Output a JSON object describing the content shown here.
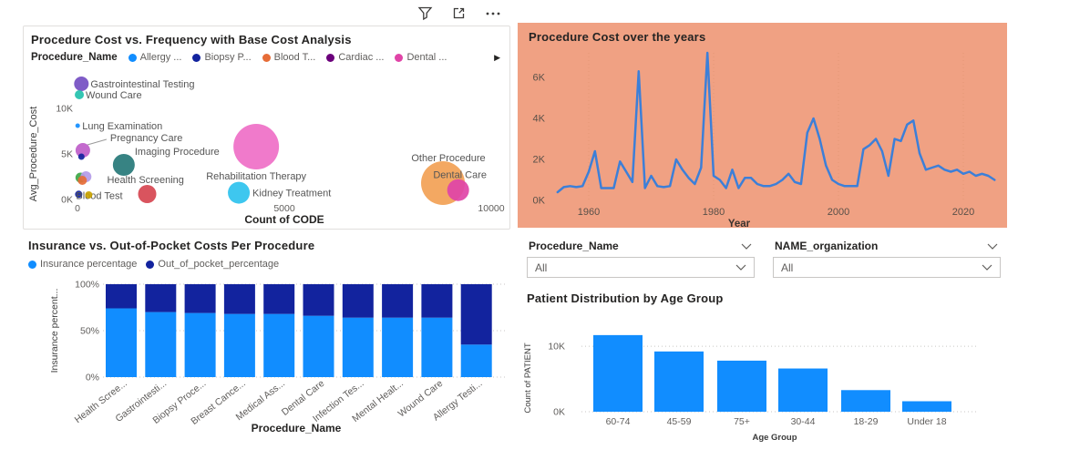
{
  "toolbar": {
    "icons": [
      {
        "name": "filter-icon"
      },
      {
        "name": "focus-mode-icon"
      },
      {
        "name": "more-options-icon"
      }
    ]
  },
  "scatter": {
    "title": "Procedure Cost vs. Frequency with Base Cost Analysis",
    "legend_title": "Procedure_Name",
    "legend_items": [
      {
        "label": "Allergy ...",
        "color": "#118DFF"
      },
      {
        "label": "Biopsy P...",
        "color": "#12239E"
      },
      {
        "label": "Blood T...",
        "color": "#E66C37"
      },
      {
        "label": "Cardiac ...",
        "color": "#6B007B"
      },
      {
        "label": "Dental ...",
        "color": "#E044A7"
      }
    ],
    "legend_overflow_arrow": "▶",
    "chart_data": {
      "type": "scatter",
      "xlabel": "Count of CODE",
      "ylabel": "Avg_Procedure_Cost",
      "x_ticks": [
        {
          "v": 0,
          "label": "0"
        },
        {
          "v": 5000,
          "label": "5000"
        },
        {
          "v": 10000,
          "label": "10000"
        }
      ],
      "y_ticks": [
        {
          "v": 0,
          "label": "0K"
        },
        {
          "v": 5000,
          "label": "5K"
        },
        {
          "v": 10000,
          "label": "10K"
        }
      ],
      "xlim": [
        0,
        10500
      ],
      "ylim": [
        0,
        14000
      ],
      "points": [
        {
          "label": "Gastrointestinal Testing",
          "x": 95,
          "y": 12700,
          "r": 8,
          "color": "#744EC2",
          "dx": 10,
          "dy": 4,
          "anchor": "start"
        },
        {
          "label": "Wound Care",
          "x": 45,
          "y": 11500,
          "r": 5,
          "color": "#23C1AC",
          "dx": 7,
          "dy": 4,
          "anchor": "start"
        },
        {
          "label": "Lung Examination",
          "x": 5,
          "y": 8100,
          "r": 2.5,
          "color": "#118DFF",
          "dx": 5,
          "dy": 4,
          "anchor": "start"
        },
        {
          "label": "Pregnancy Care",
          "x": 130,
          "y": 5400,
          "r": 8,
          "color": "#BE5DC9",
          "dx": 30,
          "dy": -10,
          "anchor": "start",
          "leader": true
        },
        {
          "label": "",
          "x": 95,
          "y": 4700,
          "r": 3.5,
          "color": "#12239E"
        },
        {
          "label": "Imaging Procedure",
          "x": 1120,
          "y": 3800,
          "r": 12,
          "color": "#267878",
          "dx": 12,
          "dy": -11,
          "anchor": "start"
        },
        {
          "label": "",
          "x": 73,
          "y": 2400,
          "r": 5.5,
          "color": "#3CA746"
        },
        {
          "label": "",
          "x": 205,
          "y": 2500,
          "r": 6,
          "color": "#B49BE8"
        },
        {
          "label": "",
          "x": 117,
          "y": 2100,
          "r": 5,
          "color": "#E66C37"
        },
        {
          "label": "Health Screening",
          "x": 1685,
          "y": 600,
          "r": 10,
          "color": "#D64550",
          "dx": -44,
          "dy": -12,
          "anchor": "start"
        },
        {
          "label": "Blood Test",
          "x": 30,
          "y": 570,
          "r": 4,
          "color": "#12239E",
          "dx": -3,
          "dy": 5,
          "anchor": "start"
        },
        {
          "label": "",
          "x": 273,
          "y": 500,
          "r": 4,
          "color": "#C8A200"
        },
        {
          "label": "Kidney Treatment",
          "x": 3900,
          "y": 740,
          "r": 12,
          "color": "#2EC2EE",
          "dx": 15,
          "dy": 4,
          "anchor": "start"
        },
        {
          "label": "Rehabilitation Therapy",
          "x": 4320,
          "y": 5800,
          "r": 25,
          "color": "#EF6FC7",
          "dx": 0,
          "dy": 36,
          "anchor": "middle"
        },
        {
          "label": "Other Procedure",
          "x": 8833,
          "y": 1800,
          "r": 24,
          "color": "#F2A155",
          "dx": 6,
          "dy": -24,
          "anchor": "middle"
        },
        {
          "label": "Dental Care",
          "x": 9200,
          "y": 1030,
          "r": 12,
          "color": "#E044A7",
          "dx": 2,
          "dy": -13,
          "anchor": "middle"
        }
      ]
    }
  },
  "line": {
    "title": "Procedure Cost over the years",
    "background": "#F0A183",
    "line_color": "#3C7FD8",
    "chart_data": {
      "type": "line",
      "xlabel": "Year",
      "x_ticks": [
        1960,
        1980,
        2000,
        2020
      ],
      "y_ticks": [
        {
          "v": 0,
          "label": "0K"
        },
        {
          "v": 2000,
          "label": "2K"
        },
        {
          "v": 4000,
          "label": "4K"
        },
        {
          "v": 6000,
          "label": "6K"
        }
      ],
      "ylim": [
        0,
        7500
      ],
      "years": [
        1955,
        1956,
        1957,
        1958,
        1959,
        1960,
        1961,
        1962,
        1963,
        1964,
        1965,
        1966,
        1967,
        1968,
        1969,
        1970,
        1971,
        1972,
        1973,
        1974,
        1975,
        1976,
        1977,
        1978,
        1979,
        1980,
        1981,
        1982,
        1983,
        1984,
        1985,
        1986,
        1987,
        1988,
        1989,
        1990,
        1991,
        1992,
        1993,
        1994,
        1995,
        1996,
        1997,
        1998,
        1999,
        2000,
        2001,
        2002,
        2003,
        2004,
        2005,
        2006,
        2007,
        2008,
        2009,
        2010,
        2011,
        2012,
        2013,
        2014,
        2015,
        2016,
        2017,
        2018,
        2019,
        2020,
        2021,
        2022,
        2023,
        2024,
        2025
      ],
      "values": [
        400,
        650,
        700,
        650,
        700,
        1400,
        2400,
        600,
        600,
        600,
        1900,
        1400,
        900,
        6300,
        600,
        1200,
        700,
        650,
        700,
        2000,
        1500,
        1100,
        800,
        1600,
        7200,
        1200,
        1000,
        600,
        1500,
        600,
        1100,
        1100,
        800,
        700,
        700,
        800,
        1000,
        1300,
        900,
        800,
        3300,
        4000,
        3000,
        1700,
        1000,
        800,
        700,
        700,
        700,
        2500,
        2700,
        3000,
        2400,
        1200,
        3000,
        2900,
        3700,
        3900,
        2300,
        1500,
        1600,
        1700,
        1500,
        1400,
        1500,
        1300,
        1400,
        1200,
        1300,
        1200,
        1000
      ]
    }
  },
  "stacked": {
    "title": "Insurance vs. Out-of-Pocket Costs Per Procedure",
    "legend_items": [
      {
        "label": "Insurance percentage",
        "color": "#118DFF"
      },
      {
        "label": "Out_of_pocket_percentage",
        "color": "#12239E"
      }
    ],
    "chart_data": {
      "type": "bar",
      "stacked": true,
      "xlabel": "Procedure_Name",
      "ylabel": "Insurance percent...",
      "y_ticks": [
        {
          "v": 100,
          "label": "100%"
        },
        {
          "v": 50,
          "label": "50%"
        },
        {
          "v": 0,
          "label": "0%"
        }
      ],
      "categories": [
        "Health Scree...",
        "Gastrointesti...",
        "Biopsy Proce...",
        "Breast Cance...",
        "Medical Ass...",
        "Dental Care",
        "Infection Tes...",
        "Mental Healt...",
        "Wound Care",
        "Allergy Testi..."
      ],
      "series": [
        {
          "name": "Insurance percentage",
          "color": "#118DFF",
          "values": [
            74,
            70,
            69,
            68,
            68,
            66,
            64,
            64,
            64,
            35
          ]
        },
        {
          "name": "Out_of_pocket_percentage",
          "color": "#12239E",
          "values": [
            26,
            30,
            31,
            32,
            32,
            34,
            36,
            36,
            36,
            65
          ]
        }
      ]
    }
  },
  "slicers": [
    {
      "label": "Procedure_Name",
      "value": "All"
    },
    {
      "label": "NAME_organization",
      "value": "All"
    }
  ],
  "age": {
    "title": "Patient Distribution by Age Group",
    "bar_color": "#118DFF",
    "chart_data": {
      "type": "bar",
      "xlabel": "Age Group",
      "ylabel": "Count of PATIENT",
      "y_ticks": [
        {
          "v": 0,
          "label": "0K"
        },
        {
          "v": 10000,
          "label": "10K"
        }
      ],
      "ylim": [
        0,
        13000
      ],
      "categories": [
        "60-74",
        "45-59",
        "75+",
        "30-44",
        "18-29",
        "Under 18"
      ],
      "values": [
        11700,
        9200,
        7800,
        6600,
        3300,
        1600
      ]
    }
  }
}
